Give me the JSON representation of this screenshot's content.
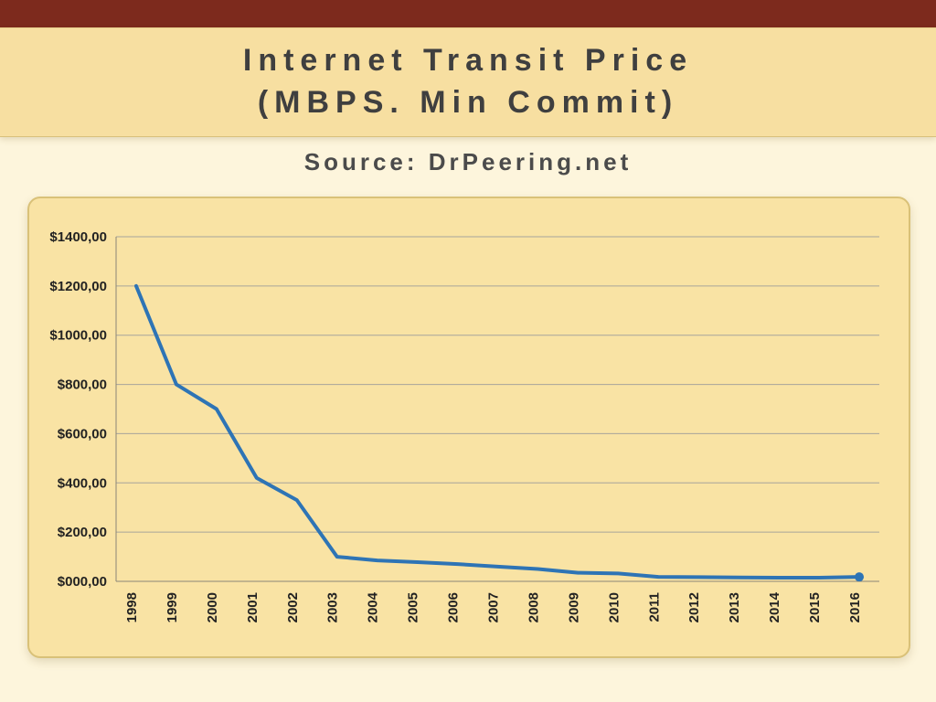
{
  "top_strip_color": "#7d2a1d",
  "header": {
    "title_line1": "Internet Transit Price",
    "title_line2": "(MBPS. Min Commit)"
  },
  "source_label": "Source: DrPeering.net",
  "chart_data": {
    "type": "line",
    "title": "Internet Transit Price (MBPS. Min Commit)",
    "source": "DrPeering.net",
    "categories": [
      "1998",
      "1999",
      "2000",
      "2001",
      "2002",
      "2003",
      "2004",
      "2005",
      "2006",
      "2007",
      "2008",
      "2009",
      "2010",
      "2011",
      "2012",
      "2013",
      "2014",
      "2015",
      "2016"
    ],
    "values": [
      1200,
      800,
      700,
      420,
      330,
      100,
      85,
      78,
      70,
      60,
      50,
      35,
      32,
      18,
      17,
      16,
      15,
      15,
      18
    ],
    "ylim": [
      0,
      1400
    ],
    "y_tick_step": 200,
    "y_tick_labels": [
      "$000,00",
      "$200,00",
      "$400,00",
      "$600,00",
      "$800,00",
      "$1000,00",
      "$1200,00",
      "$1400,00"
    ],
    "xlabel": "",
    "ylabel": "",
    "grid": "horizontal",
    "legend": "none",
    "line_color": "#2e74b5",
    "line_width": 4,
    "gridline_color": "#a8a49b",
    "axis_color": "#8a8678"
  }
}
